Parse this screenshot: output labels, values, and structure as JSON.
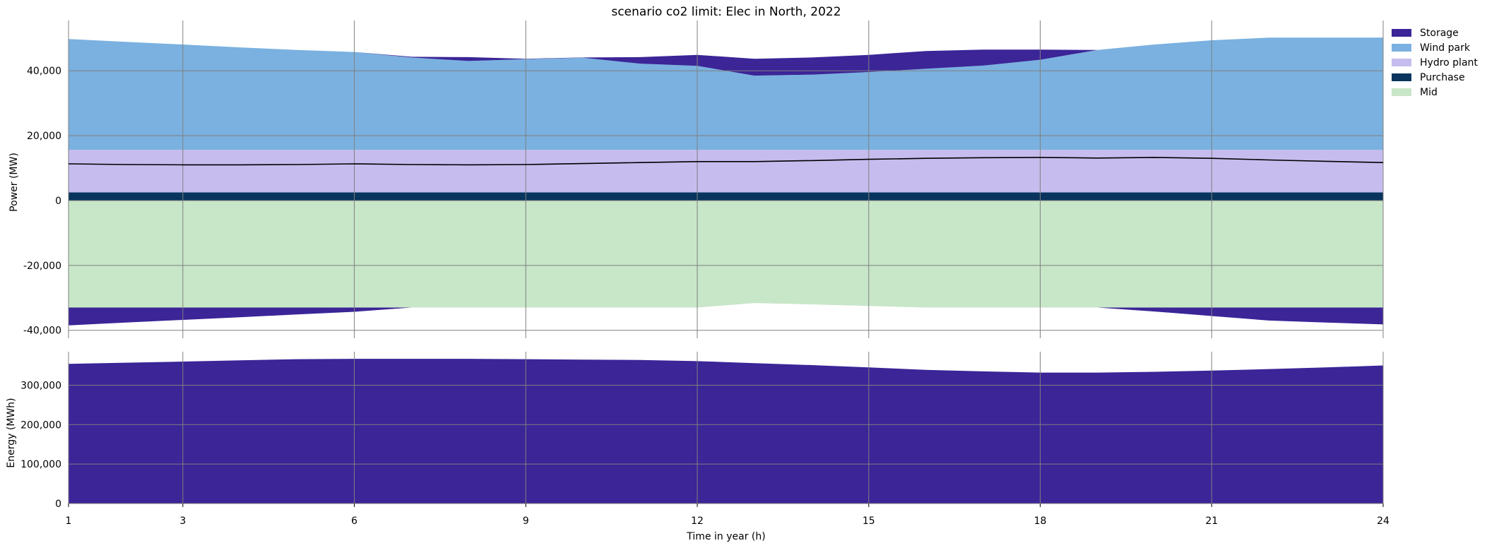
{
  "chart_data": {
    "type": "area",
    "title": "scenario co2 limit: Elec in North, 2022",
    "xlabel": "Time in year (h)",
    "x_ticks": [
      1,
      3,
      6,
      9,
      12,
      15,
      18,
      21,
      24
    ],
    "x": [
      1,
      2,
      3,
      4,
      5,
      6,
      7,
      8,
      9,
      10,
      11,
      12,
      13,
      14,
      15,
      16,
      17,
      18,
      19,
      20,
      21,
      22,
      23,
      24
    ],
    "xlim": [
      1,
      24
    ],
    "colors": {
      "Storage": "#3b2597",
      "Wind park": "#7ab1e0",
      "Hydro plant": "#c7bcee",
      "Purchase": "#08345e",
      "Mid": "#c8e6c8",
      "demand_line": "#000000",
      "grid": "#808080"
    },
    "legend": {
      "position": "right",
      "entries": [
        "Storage",
        "Wind park",
        "Hydro plant",
        "Purchase",
        "Mid"
      ]
    },
    "power_panel": {
      "ylabel": "Power (MW)",
      "ylim": [
        -40500,
        55500
      ],
      "y_ticks": [
        40000,
        20000,
        0,
        -20000,
        -40000
      ],
      "y_tick_labels": [
        "40,000",
        "20,000",
        "0",
        "-20,000",
        "-40,000"
      ],
      "positive_series": [
        {
          "name": "Purchase",
          "values": [
            2500,
            2500,
            2500,
            2500,
            2500,
            2500,
            2500,
            2500,
            2500,
            2500,
            2500,
            2500,
            2500,
            2500,
            2500,
            2500,
            2500,
            2500,
            2500,
            2500,
            2500,
            2500,
            2500,
            2500
          ]
        },
        {
          "name": "Hydro plant",
          "values": [
            13100,
            13100,
            13100,
            13100,
            13100,
            13100,
            13100,
            13100,
            13100,
            13100,
            13100,
            13100,
            13100,
            13100,
            13100,
            13100,
            13100,
            13100,
            13100,
            13100,
            13100,
            13100,
            13100,
            13100
          ]
        },
        {
          "name": "Wind park",
          "values": [
            34200,
            33300,
            32500,
            31600,
            30800,
            30200,
            28500,
            27400,
            28000,
            28400,
            26600,
            25900,
            22900,
            23200,
            24000,
            25000,
            26000,
            27800,
            30800,
            32500,
            33800,
            34600,
            34600,
            34600
          ]
        },
        {
          "name": "Storage",
          "values": [
            0,
            0,
            0,
            0,
            0,
            0,
            200,
            1200,
            100,
            100,
            2000,
            3400,
            5200,
            5300,
            5300,
            5500,
            4900,
            3100,
            0,
            0,
            0,
            0,
            0,
            0
          ]
        }
      ],
      "negative_series": [
        {
          "name": "Mid",
          "values": [
            -33000,
            -33000,
            -33000,
            -33000,
            -33000,
            -33000,
            -33000,
            -33000,
            -33000,
            -33000,
            -33000,
            -33000,
            -31600,
            -32000,
            -32500,
            -33000,
            -33000,
            -33000,
            -33000,
            -33000,
            -33000,
            -33000,
            -33000,
            -33000
          ]
        },
        {
          "name": "Storage",
          "values": [
            -5500,
            -4600,
            -3800,
            -3000,
            -2100,
            -1300,
            0,
            0,
            0,
            0,
            0,
            0,
            0,
            0,
            0,
            0,
            0,
            0,
            0,
            -1200,
            -2600,
            -4000,
            -4600,
            -5200
          ]
        }
      ],
      "demand_line": [
        11300,
        11100,
        11000,
        11000,
        11100,
        11300,
        11100,
        11000,
        11100,
        11400,
        11700,
        12000,
        12000,
        12300,
        12700,
        13000,
        13200,
        13300,
        13100,
        13300,
        13000,
        12500,
        12100,
        11700
      ]
    },
    "energy_panel": {
      "ylabel": "Energy (MWh)",
      "ylim": [
        0,
        385000
      ],
      "y_ticks": [
        0,
        100000,
        200000,
        300000
      ],
      "y_tick_labels": [
        "0",
        "100,000",
        "200,000",
        "300,000"
      ],
      "series": [
        {
          "name": "Storage",
          "values": [
            354000,
            357000,
            360000,
            363000,
            366000,
            367000,
            367000,
            367000,
            366000,
            365000,
            364000,
            361000,
            356000,
            351000,
            345000,
            339000,
            335000,
            332000,
            332000,
            334000,
            337000,
            341000,
            345000,
            350000
          ]
        }
      ]
    }
  }
}
